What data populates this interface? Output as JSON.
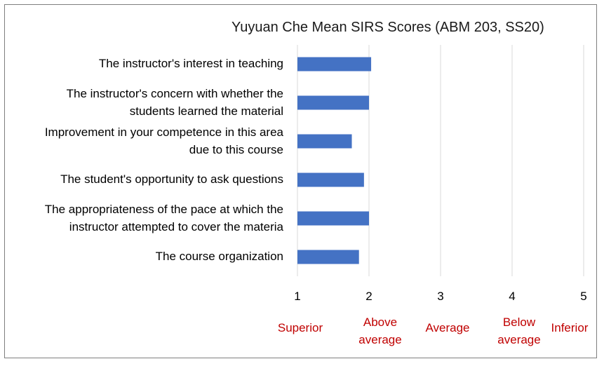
{
  "chart_data": {
    "type": "bar",
    "orientation": "horizontal",
    "title": "Yuyuan Che Mean SIRS Scores (ABM 203, SS20)",
    "categories": [
      "The instructor's interest in teaching",
      "The instructor's concern with whether the\nstudents learned the material",
      "Improvement in your competence in this area\ndue to this course",
      "The student's opportunity to ask questions",
      "The appropriateness of the pace at which the\ninstructor attempted to cover the materia",
      "The course organization"
    ],
    "values": [
      2.03,
      2.0,
      1.76,
      1.93,
      2.0,
      1.86
    ],
    "xlim": [
      1,
      5
    ],
    "xticks": [
      "1",
      "2",
      "3",
      "4",
      "5"
    ],
    "rating_labels": [
      "Superior",
      "Above\naverage",
      "Average",
      "Below\naverage",
      "Inferior"
    ],
    "bar_color": "#4472c4",
    "grid": true,
    "legend": "none"
  }
}
